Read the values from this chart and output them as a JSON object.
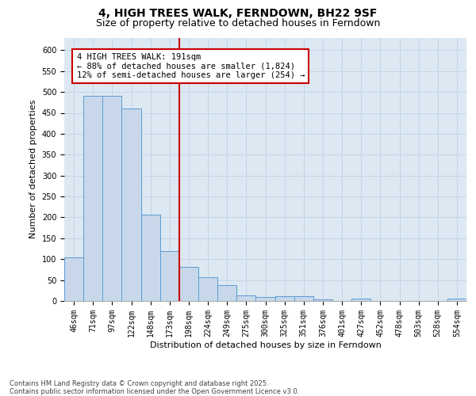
{
  "title_line1": "4, HIGH TREES WALK, FERNDOWN, BH22 9SF",
  "title_line2": "Size of property relative to detached houses in Ferndown",
  "xlabel": "Distribution of detached houses by size in Ferndown",
  "ylabel": "Number of detached properties",
  "categories": [
    "46sqm",
    "71sqm",
    "97sqm",
    "122sqm",
    "148sqm",
    "173sqm",
    "198sqm",
    "224sqm",
    "249sqm",
    "275sqm",
    "300sqm",
    "325sqm",
    "351sqm",
    "376sqm",
    "401sqm",
    "427sqm",
    "452sqm",
    "478sqm",
    "503sqm",
    "528sqm",
    "554sqm"
  ],
  "values": [
    105,
    490,
    490,
    460,
    207,
    120,
    82,
    57,
    38,
    14,
    9,
    11,
    11,
    3,
    0,
    5,
    0,
    0,
    0,
    0,
    6
  ],
  "bar_color": "#c8d8ea",
  "bar_edge_color": "#5b9bd5",
  "vline_color": "#cc0000",
  "annotation_text": "4 HIGH TREES WALK: 191sqm\n← 88% of detached houses are smaller (1,824)\n12% of semi-detached houses are larger (254) →",
  "annotation_box_color": "#ffffff",
  "annotation_box_edge_color": "#cc0000",
  "ylim": [
    0,
    630
  ],
  "yticks": [
    0,
    50,
    100,
    150,
    200,
    250,
    300,
    350,
    400,
    450,
    500,
    550,
    600
  ],
  "grid_color": "#c5d5e5",
  "background_color": "#dce8f2",
  "footer_text": "Contains HM Land Registry data © Crown copyright and database right 2025.\nContains public sector information licensed under the Open Government Licence v3.0.",
  "title_fontsize": 10,
  "subtitle_fontsize": 9,
  "axis_label_fontsize": 8,
  "tick_fontsize": 7,
  "annotation_fontsize": 7.5,
  "footer_fontsize": 6
}
